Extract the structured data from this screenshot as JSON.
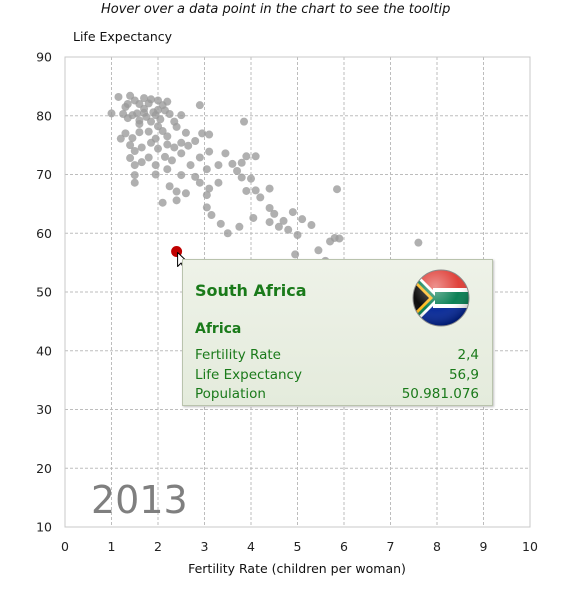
{
  "instruction": "Hover over a data point in the chart to see the tooltip",
  "colors": {
    "point": "#9a9a9a",
    "highlight": "#c00000",
    "tooltip_text": "#1a7a1a",
    "year_label": "#7f7f7f"
  },
  "tooltip": {
    "country": "South Africa",
    "region": "Africa",
    "rows": [
      {
        "label": "Fertility Rate",
        "value": "2,4"
      },
      {
        "label": "Life Expectancy",
        "value": "56,9"
      },
      {
        "label": "Population",
        "value": "50.981.076"
      }
    ],
    "flag_icon": "south-africa-flag-icon"
  },
  "chart_data": {
    "type": "scatter",
    "year_label": "2013",
    "xlabel": "Fertility Rate (children per woman)",
    "ylabel": "Life Expectancy",
    "xlim": [
      0,
      10
    ],
    "ylim": [
      10,
      90
    ],
    "xticks": [
      "0",
      "1",
      "2",
      "3",
      "4",
      "5",
      "6",
      "7",
      "8",
      "9",
      "10"
    ],
    "yticks": [
      "10",
      "20",
      "30",
      "40",
      "50",
      "60",
      "70",
      "80",
      "90"
    ],
    "grid": true,
    "highlighted_point": {
      "label": "South Africa",
      "x": 2.4,
      "y": 56.9
    },
    "points": [
      [
        1.15,
        83.2
      ],
      [
        1.3,
        81.5
      ],
      [
        1.4,
        83.4
      ],
      [
        1.5,
        82.6
      ],
      [
        1.55,
        80.4
      ],
      [
        1.7,
        81.2
      ],
      [
        1.8,
        82.1
      ],
      [
        1.9,
        80.6
      ],
      [
        2.0,
        82.6
      ],
      [
        2.1,
        81.8
      ],
      [
        1.25,
        80.3
      ],
      [
        1.35,
        79.6
      ],
      [
        1.45,
        80.1
      ],
      [
        1.6,
        79.2
      ],
      [
        1.75,
        79.8
      ],
      [
        1.85,
        79.0
      ],
      [
        1.95,
        80.1
      ],
      [
        2.05,
        79.4
      ],
      [
        2.15,
        80.9
      ],
      [
        2.25,
        80.3
      ],
      [
        2.35,
        79.0
      ],
      [
        2.5,
        80.1
      ],
      [
        2.9,
        81.8
      ],
      [
        1.0,
        80.4
      ],
      [
        1.6,
        82.0
      ],
      [
        1.85,
        82.8
      ],
      [
        2.2,
        82.4
      ],
      [
        1.35,
        82.0
      ],
      [
        1.7,
        80.5
      ],
      [
        2.0,
        81.0
      ],
      [
        1.3,
        77.0
      ],
      [
        1.45,
        76.2
      ],
      [
        1.6,
        77.2
      ],
      [
        1.8,
        77.3
      ],
      [
        1.95,
        76.1
      ],
      [
        2.1,
        77.4
      ],
      [
        2.2,
        76.5
      ],
      [
        2.4,
        78.1
      ],
      [
        2.6,
        77.1
      ],
      [
        2.95,
        77.0
      ],
      [
        3.1,
        76.8
      ],
      [
        1.4,
        75.0
      ],
      [
        1.5,
        74.0
      ],
      [
        1.65,
        74.6
      ],
      [
        1.85,
        75.4
      ],
      [
        2.0,
        74.4
      ],
      [
        2.2,
        75.1
      ],
      [
        2.35,
        74.6
      ],
      [
        2.5,
        75.4
      ],
      [
        2.65,
        74.9
      ],
      [
        1.4,
        72.8
      ],
      [
        1.5,
        71.6
      ],
      [
        1.65,
        72.1
      ],
      [
        1.8,
        72.9
      ],
      [
        1.95,
        71.6
      ],
      [
        2.15,
        73.0
      ],
      [
        2.3,
        72.4
      ],
      [
        2.5,
        73.6
      ],
      [
        2.7,
        71.6
      ],
      [
        2.9,
        72.9
      ],
      [
        3.1,
        73.9
      ],
      [
        1.5,
        69.9
      ],
      [
        1.5,
        68.6
      ],
      [
        1.95,
        70.0
      ],
      [
        2.2,
        70.9
      ],
      [
        2.5,
        69.9
      ],
      [
        2.8,
        69.6
      ],
      [
        3.05,
        70.9
      ],
      [
        3.3,
        71.6
      ],
      [
        3.45,
        73.6
      ],
      [
        2.25,
        68.0
      ],
      [
        2.4,
        67.1
      ],
      [
        2.6,
        66.8
      ],
      [
        2.4,
        65.6
      ],
      [
        2.9,
        68.6
      ],
      [
        3.1,
        67.6
      ],
      [
        3.3,
        68.6
      ],
      [
        3.05,
        66.5
      ],
      [
        3.6,
        71.8
      ],
      [
        3.8,
        72.0
      ],
      [
        3.7,
        70.6
      ],
      [
        3.8,
        69.5
      ],
      [
        3.9,
        73.1
      ],
      [
        4.1,
        73.1
      ],
      [
        3.85,
        79.0
      ],
      [
        3.9,
        67.2
      ],
      [
        4.0,
        69.3
      ],
      [
        4.1,
        67.3
      ],
      [
        4.4,
        67.6
      ],
      [
        4.2,
        66.1
      ],
      [
        3.05,
        64.4
      ],
      [
        3.15,
        63.1
      ],
      [
        3.35,
        61.6
      ],
      [
        3.5,
        60.0
      ],
      [
        3.75,
        61.1
      ],
      [
        4.05,
        62.6
      ],
      [
        2.1,
        65.2
      ],
      [
        4.4,
        64.3
      ],
      [
        4.5,
        63.3
      ],
      [
        4.7,
        62.1
      ],
      [
        4.9,
        63.6
      ],
      [
        4.4,
        61.9
      ],
      [
        4.6,
        61.1
      ],
      [
        4.8,
        60.6
      ],
      [
        5.0,
        59.7
      ],
      [
        5.1,
        62.4
      ],
      [
        5.3,
        61.4
      ],
      [
        5.45,
        57.1
      ],
      [
        5.7,
        58.6
      ],
      [
        5.8,
        59.2
      ],
      [
        5.9,
        59.1
      ],
      [
        5.6,
        55.3
      ],
      [
        5.85,
        67.5
      ],
      [
        4.95,
        56.4
      ],
      [
        7.6,
        58.4
      ],
      [
        1.6,
        78.6
      ],
      [
        1.7,
        83.0
      ],
      [
        2.0,
        78.2
      ],
      [
        1.2,
        76.1
      ],
      [
        2.8,
        75.7
      ]
    ]
  }
}
